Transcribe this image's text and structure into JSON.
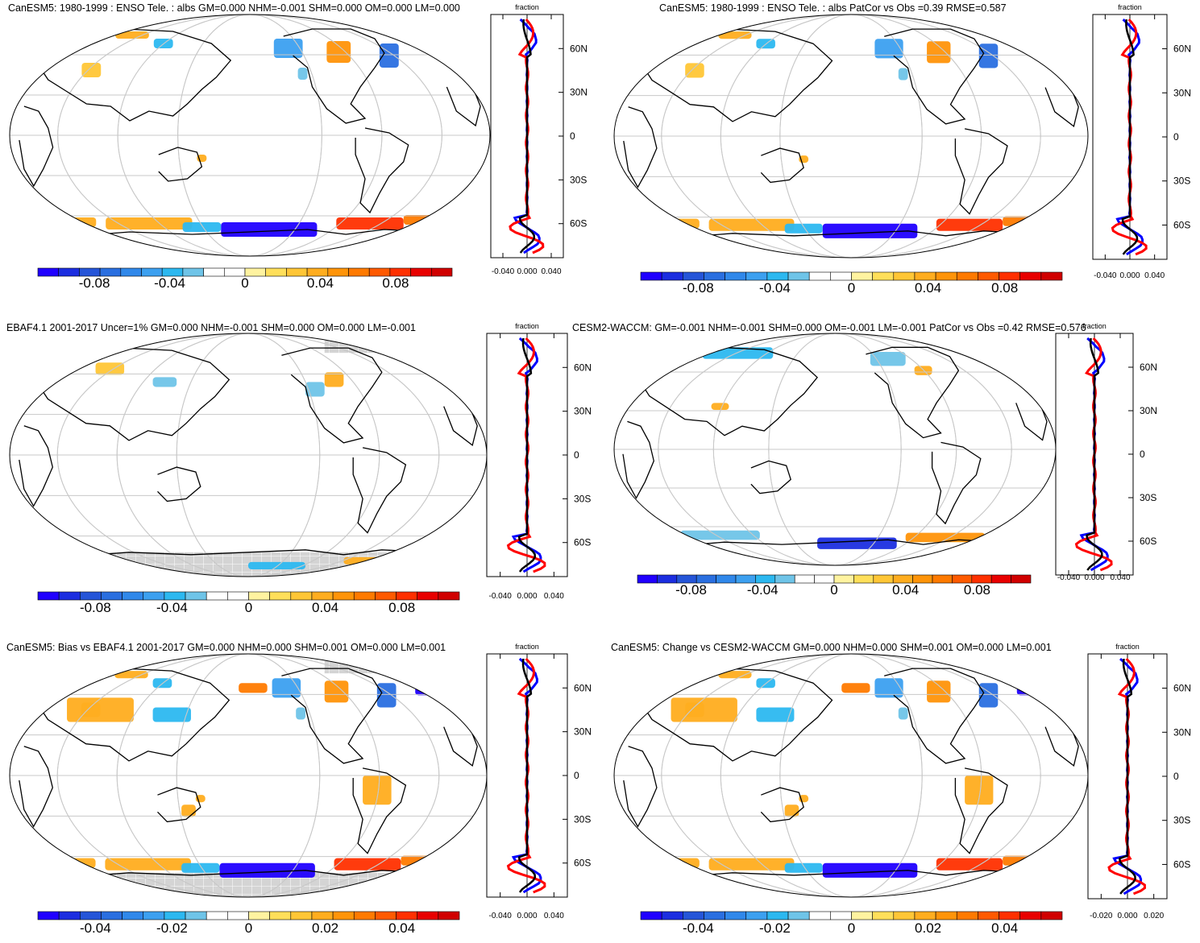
{
  "panels": [
    {
      "id": "p1",
      "title": "CanESM5: 1980-1999 : ENSO Tele. : albs GM=0.000 NHM=-0.001 SHM=0.000 OM=0.000 LM=0.000",
      "colorbar_labels": [
        "-0.08",
        "-0.04",
        "0",
        "0.04",
        "0.08"
      ],
      "colorbar_range": [
        -0.11,
        0.11
      ],
      "gray_mask": false,
      "profile": {
        "title": "fraction",
        "xticks": [
          "-0.040",
          "0.000",
          "0.040"
        ],
        "xlim": [
          -0.06,
          0.06
        ],
        "lat_ticks": [
          "60N",
          "30N",
          "0",
          "30S",
          "60S"
        ],
        "series_colors": [
          "#0000ff",
          "#ff0000",
          "#000000"
        ]
      }
    },
    {
      "id": "p2",
      "title": "CanESM5: 1980-1999 : ENSO Tele. : albs PatCor vs Obs =0.39 RMSE=0.587",
      "colorbar_labels": [
        "-0.08",
        "-0.04",
        "0",
        "0.04",
        "0.08"
      ],
      "colorbar_range": [
        -0.11,
        0.11
      ],
      "gray_mask": false,
      "profile": {
        "title": "fraction",
        "xticks": [
          "-0.040",
          "0.000",
          "0.040"
        ],
        "xlim": [
          -0.06,
          0.06
        ],
        "lat_ticks": [
          "60N",
          "30N",
          "0",
          "30S",
          "60S"
        ],
        "series_colors": [
          "#0000ff",
          "#ff0000",
          "#000000"
        ]
      }
    },
    {
      "id": "p3",
      "title": "EBAF4.1 2001-2017 Uncer=1% GM=0.000 NHM=-0.001 SHM=0.000 OM=0.000 LM=-0.001",
      "colorbar_labels": [
        "-0.08",
        "-0.04",
        "0",
        "0.04",
        "0.08"
      ],
      "colorbar_range": [
        -0.11,
        0.11
      ],
      "gray_mask": true,
      "profile": {
        "title": "fraction",
        "xticks": [
          "-0.040",
          "0.000",
          "0.040"
        ],
        "xlim": [
          -0.06,
          0.06
        ],
        "lat_ticks": [
          "60N",
          "30N",
          "0",
          "30S",
          "60S"
        ],
        "series_colors": [
          "#0000ff",
          "#ff0000",
          "#000000"
        ]
      }
    },
    {
      "id": "p4",
      "title": "CESM2-WACCM: GM=-0.001 NHM=-0.001 SHM=0.000 OM=-0.001 LM=-0.001 PatCor vs Obs =0.42 RMSE=0.576",
      "colorbar_labels": [
        "-0.08",
        "-0.04",
        "0",
        "0.04",
        "0.08"
      ],
      "colorbar_range": [
        -0.11,
        0.11
      ],
      "gray_mask": false,
      "profile": {
        "title": "fraction",
        "xticks": [
          "-0.040",
          "0.000",
          "0.040"
        ],
        "xlim": [
          -0.06,
          0.06
        ],
        "lat_ticks": [
          "60N",
          "30N",
          "0",
          "30S",
          "60S"
        ],
        "series_colors": [
          "#0000ff",
          "#ff0000",
          "#000000"
        ]
      }
    },
    {
      "id": "p5",
      "title": "CanESM5: Bias vs EBAF4.1 2001-2017 GM=0.000 NHM=0.000 SHM=0.001 OM=0.000 LM=0.001",
      "colorbar_labels": [
        "-0.04",
        "-0.02",
        "0",
        "0.02",
        "0.04"
      ],
      "colorbar_range": [
        -0.055,
        0.055
      ],
      "gray_mask": true,
      "profile": {
        "title": "fraction",
        "xticks": [
          "-0.040",
          "0.000",
          "0.040"
        ],
        "xlim": [
          -0.06,
          0.06
        ],
        "lat_ticks": [
          "60N",
          "30N",
          "0",
          "30S",
          "60S"
        ],
        "series_colors": [
          "#0000ff",
          "#ff0000",
          "#000000"
        ]
      }
    },
    {
      "id": "p6",
      "title": "CanESM5: Change vs CESM2-WACCM GM=0.000 NHM=0.000 SHM=0.001 OM=0.000 LM=0.001",
      "colorbar_labels": [
        "-0.04",
        "-0.02",
        "0",
        "0.02",
        "0.04"
      ],
      "colorbar_range": [
        -0.055,
        0.055
      ],
      "gray_mask": false,
      "profile": {
        "title": "fraction",
        "xticks": [
          "-0.020",
          "0.000",
          "0.020"
        ],
        "xlim": [
          -0.03,
          0.03
        ],
        "lat_ticks": [
          "60N",
          "30N",
          "0",
          "30S",
          "60S"
        ],
        "series_colors": [
          "#0000ff",
          "#ff0000",
          "#000000"
        ]
      }
    }
  ],
  "colormap": [
    "#2000ff",
    "#1c2ee0",
    "#2555d8",
    "#2a6fe0",
    "#3088ea",
    "#3ca0f0",
    "#2cb8f0",
    "#6fc4e8",
    "#ffffff",
    "#ffffff",
    "#fff3a0",
    "#ffdf5a",
    "#ffc636",
    "#ffad1f",
    "#ff9409",
    "#ff7a00",
    "#ff5a00",
    "#ff3000",
    "#e80000",
    "#d00000"
  ],
  "chart_data": [
    {
      "type": "heatmap",
      "panel": "p1",
      "title": "CanESM5: 1980-1999 : ENSO Tele. : albs GM=0.000 NHM=-0.001 SHM=0.000 OM=0.000 LM=0.000",
      "colorbar_ticks": [
        -0.08,
        -0.04,
        0,
        0.04,
        0.08
      ],
      "profile_xlim": [
        -0.06,
        0.06
      ]
    },
    {
      "type": "heatmap",
      "panel": "p2",
      "title": "CanESM5: 1980-1999 : ENSO Tele. : albs PatCor vs Obs =0.39 RMSE=0.587",
      "colorbar_ticks": [
        -0.08,
        -0.04,
        0,
        0.04,
        0.08
      ],
      "profile_xlim": [
        -0.06,
        0.06
      ]
    },
    {
      "type": "heatmap",
      "panel": "p3",
      "title": "EBAF4.1 2001-2017 Uncer=1% GM=0.000 NHM=-0.001 SHM=0.000 OM=0.000 LM=-0.001",
      "colorbar_ticks": [
        -0.08,
        -0.04,
        0,
        0.04,
        0.08
      ],
      "profile_xlim": [
        -0.06,
        0.06
      ]
    },
    {
      "type": "heatmap",
      "panel": "p4",
      "title": "CESM2-WACCM: GM=-0.001 NHM=-0.001 SHM=0.000 OM=-0.001 LM=-0.001 PatCor vs Obs =0.42 RMSE=0.576",
      "colorbar_ticks": [
        -0.08,
        -0.04,
        0,
        0.04,
        0.08
      ],
      "profile_xlim": [
        -0.06,
        0.06
      ]
    },
    {
      "type": "heatmap",
      "panel": "p5",
      "title": "CanESM5: Bias vs EBAF4.1 2001-2017 GM=0.000 NHM=0.000 SHM=0.001 OM=0.000 LM=0.001",
      "colorbar_ticks": [
        -0.04,
        -0.02,
        0,
        0.02,
        0.04
      ],
      "profile_xlim": [
        -0.06,
        0.06
      ]
    },
    {
      "type": "heatmap",
      "panel": "p6",
      "title": "CanESM5: Change vs CESM2-WACCM GM=0.000 NHM=0.000 SHM=0.001 OM=0.000 LM=0.001",
      "colorbar_ticks": [
        -0.04,
        -0.02,
        0,
        0.02,
        0.04
      ],
      "profile_xlim": [
        -0.03,
        0.03
      ]
    }
  ]
}
